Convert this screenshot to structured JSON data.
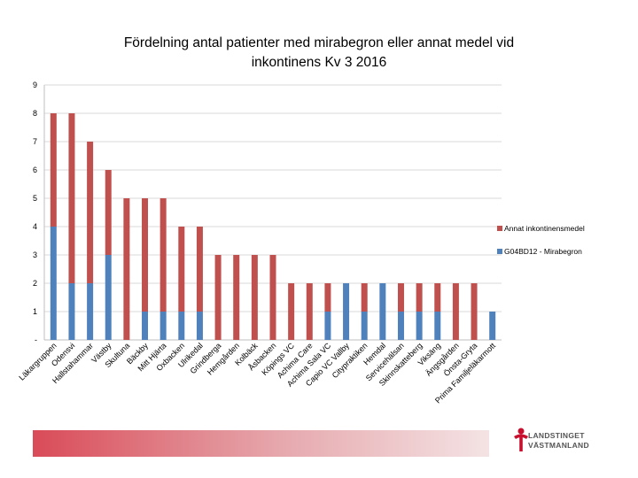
{
  "chart_data": {
    "type": "bar",
    "stacked": true,
    "title": "Fördelning antal patienter med mirabegron eller annat medel vid inkontinens Kv 3 2016",
    "title_lines": [
      "Fördelning antal patienter med mirabegron eller annat medel vid",
      "inkontinens Kv 3 2016"
    ],
    "xlabel": "",
    "ylabel": "",
    "ylim": [
      0,
      9
    ],
    "yticks": [
      "-",
      "1",
      "2",
      "3",
      "4",
      "5",
      "6",
      "7",
      "8",
      "9"
    ],
    "grid": true,
    "legend_position": "right",
    "categories": [
      "Läkargruppen",
      "Odensvi",
      "Hallstahammar",
      "Västby",
      "Skultuna",
      "Bäckby",
      "Mitt Hjärta",
      "Oxbacken",
      "Ulrikedal",
      "Grindberga",
      "Hemgården",
      "Kolbäck",
      "Åsbacken",
      "Köpings VC",
      "Achima Care",
      "Achima Sala VC",
      "Capio VC Vallby",
      "Citypraktiken",
      "Hemdal",
      "Servicehälsan",
      "Skinnskatteberg",
      "Viksäng",
      "Ängsgården",
      "Önsta-Gryta",
      "Prima Familjeläkarmott"
    ],
    "series": [
      {
        "name": "G04BD12 - Mirabegron",
        "color": "#4f81bd",
        "values": [
          4,
          2,
          2,
          3,
          0,
          1,
          1,
          1,
          1,
          0,
          0,
          0,
          0,
          0,
          0,
          1,
          2,
          1,
          2,
          1,
          1,
          1,
          0,
          0,
          1
        ]
      },
      {
        "name": "Annat inkontinensmedel",
        "color": "#c0504d",
        "values": [
          4,
          6,
          5,
          3,
          5,
          4,
          4,
          3,
          3,
          3,
          3,
          3,
          3,
          2,
          2,
          1,
          0,
          1,
          0,
          1,
          1,
          1,
          2,
          2,
          0
        ]
      }
    ]
  },
  "footer": {
    "logo_line1": "LANDSTINGET",
    "logo_line2": "VÄSTMANLAND",
    "logo_icon": "landstinget-logo-icon"
  }
}
